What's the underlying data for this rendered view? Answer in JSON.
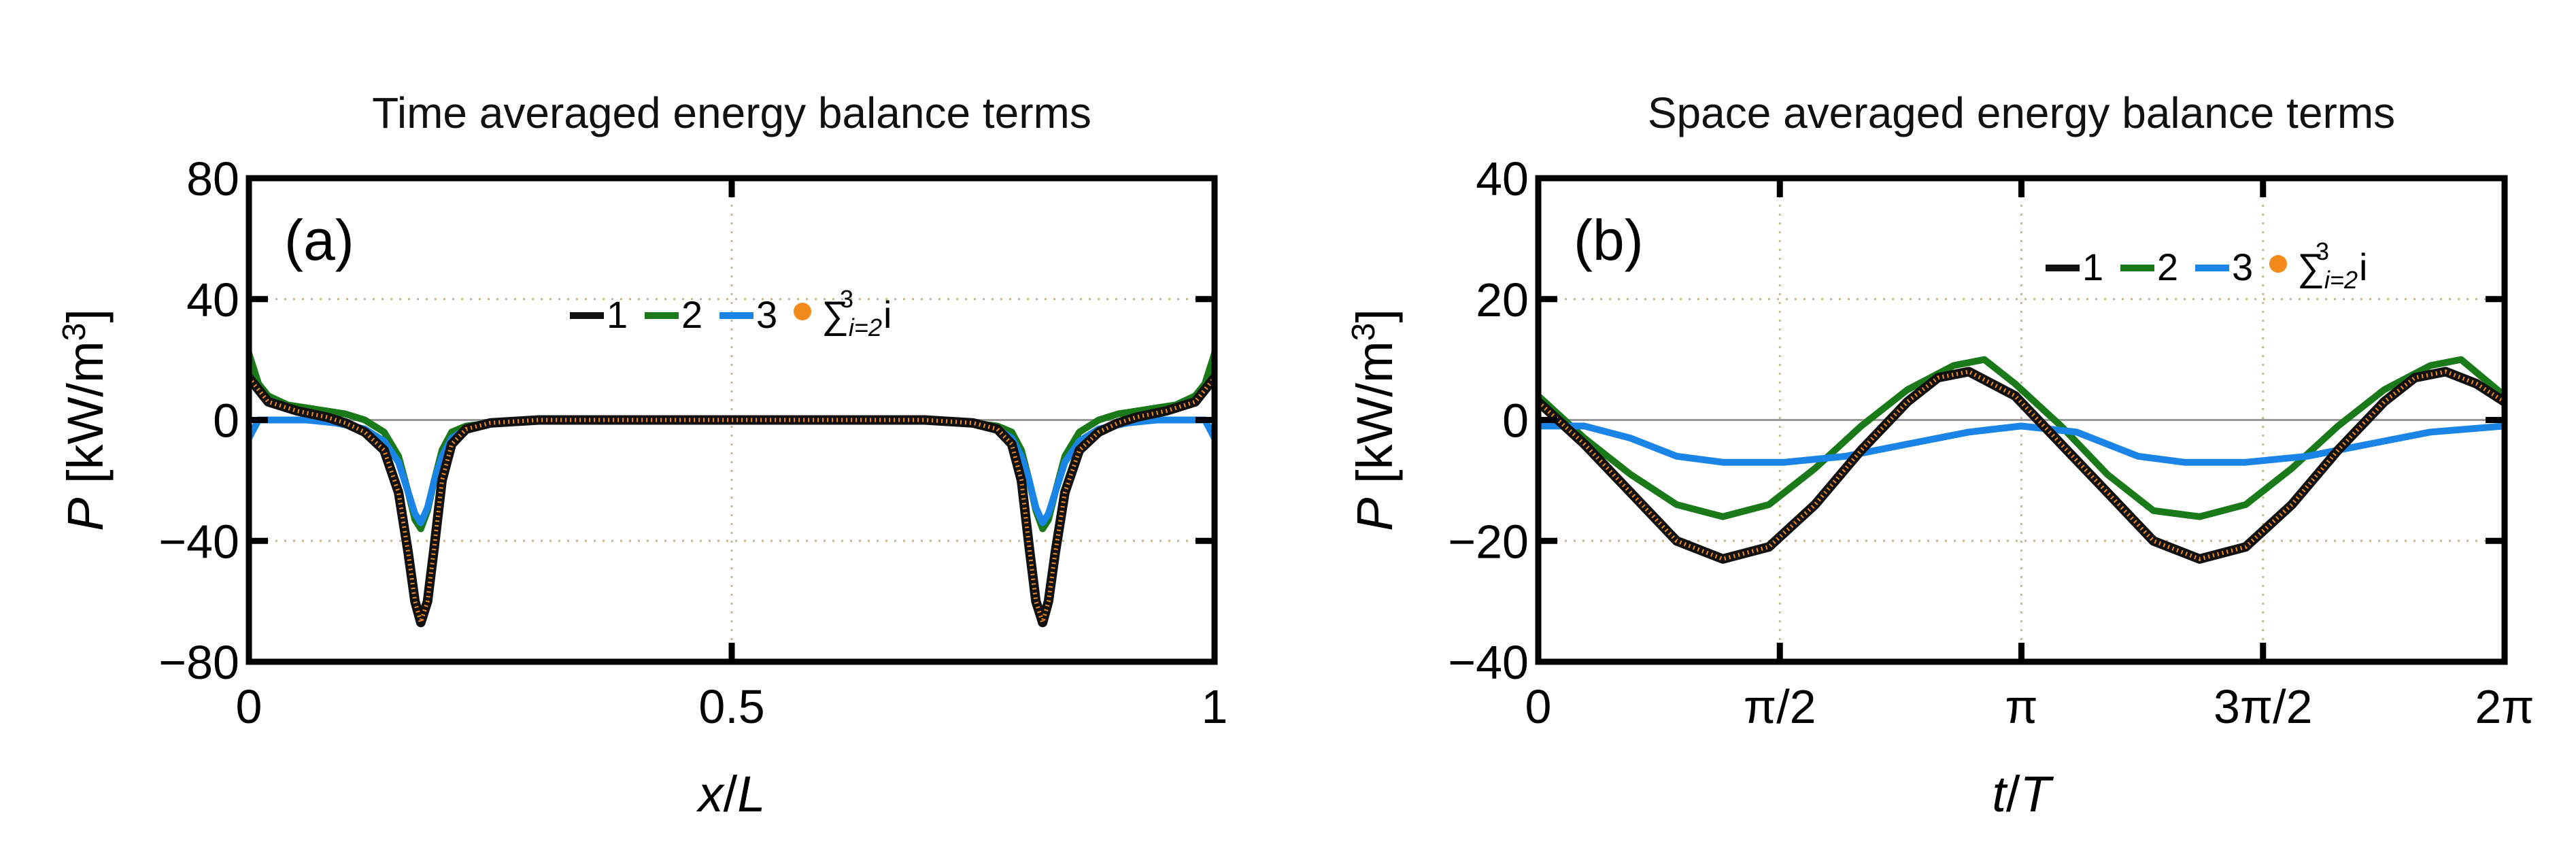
{
  "chart_data": [
    {
      "type": "line",
      "panel_label": "(a)",
      "title": "Time averaged energy balance terms",
      "xlabel_italic": "x",
      "xlabel_rest": "/",
      "xlabel_italic2": "L",
      "ylabel_italic": "P",
      "ylabel_rest": " [kW/m",
      "ylabel_sup": "3",
      "ylabel_close": "]",
      "xlim": [
        0,
        1
      ],
      "ylim": [
        -80,
        80
      ],
      "xticks": [
        0,
        0.5,
        1
      ],
      "xtick_labels": [
        "0",
        "0.5",
        "1"
      ],
      "yticks": [
        -80,
        -40,
        0,
        40,
        80
      ],
      "ytick_labels": [
        "−80",
        "−40",
        "0",
        "40",
        "80"
      ],
      "grid": "dotted",
      "legend": [
        "1",
        "2",
        "3"
      ],
      "legend_sum_symbol": "∑",
      "legend_sum_sub": "i=2",
      "legend_sum_sup": "3",
      "legend_sum_tail": "i",
      "legend_position": "upper-center",
      "series": [
        {
          "name": "1",
          "x": [
            0,
            0.02,
            0.05,
            0.08,
            0.1,
            0.12,
            0.14,
            0.155,
            0.165,
            0.172,
            0.178,
            0.185,
            0.192,
            0.2,
            0.21,
            0.225,
            0.25,
            0.3,
            0.4,
            0.5,
            0.6,
            0.7,
            0.75,
            0.775,
            0.79,
            0.8,
            0.808,
            0.815,
            0.822,
            0.828,
            0.835,
            0.845,
            0.86,
            0.88,
            0.9,
            0.92,
            0.95,
            0.98,
            1
          ],
          "y": [
            14,
            6,
            3,
            1,
            -1,
            -4,
            -10,
            -24,
            -44,
            -60,
            -67,
            -60,
            -42,
            -20,
            -8,
            -3,
            -1,
            0,
            0,
            0,
            0,
            0,
            -1,
            -3,
            -8,
            -20,
            -42,
            -60,
            -67,
            -60,
            -44,
            -24,
            -10,
            -4,
            -1,
            1,
            3,
            6,
            14
          ]
        },
        {
          "name": "2",
          "x": [
            0,
            0.01,
            0.02,
            0.04,
            0.06,
            0.08,
            0.1,
            0.12,
            0.14,
            0.155,
            0.165,
            0.172,
            0.178,
            0.185,
            0.192,
            0.2,
            0.21,
            0.225,
            0.25,
            0.3,
            0.4,
            0.5,
            0.6,
            0.7,
            0.75,
            0.775,
            0.79,
            0.8,
            0.808,
            0.815,
            0.822,
            0.828,
            0.835,
            0.845,
            0.86,
            0.88,
            0.9,
            0.92,
            0.94,
            0.96,
            0.98,
            0.99,
            1
          ],
          "y": [
            22,
            12,
            8,
            5,
            4,
            3,
            2,
            0,
            -4,
            -12,
            -24,
            -33,
            -36,
            -30,
            -20,
            -10,
            -4,
            -2,
            -1,
            0,
            0,
            0,
            0,
            0,
            -1,
            -2,
            -4,
            -10,
            -20,
            -30,
            -36,
            -33,
            -24,
            -12,
            -4,
            0,
            2,
            3,
            4,
            5,
            8,
            12,
            22
          ]
        },
        {
          "name": "3",
          "x": [
            0,
            0.01,
            0.03,
            0.06,
            0.09,
            0.12,
            0.14,
            0.155,
            0.165,
            0.172,
            0.178,
            0.185,
            0.192,
            0.2,
            0.21,
            0.225,
            0.25,
            0.3,
            0.4,
            0.5,
            0.6,
            0.7,
            0.75,
            0.775,
            0.79,
            0.8,
            0.808,
            0.815,
            0.822,
            0.828,
            0.835,
            0.845,
            0.86,
            0.88,
            0.91,
            0.94,
            0.97,
            0.99,
            1
          ],
          "y": [
            -6,
            0,
            0,
            0,
            -1,
            -3,
            -7,
            -14,
            -24,
            -31,
            -34,
            -29,
            -20,
            -12,
            -6,
            -3,
            -1,
            0,
            0,
            0,
            0,
            0,
            -1,
            -3,
            -6,
            -12,
            -20,
            -29,
            -34,
            -31,
            -24,
            -14,
            -7,
            -3,
            -1,
            0,
            0,
            0,
            -6
          ]
        },
        {
          "name": "sum",
          "marker": "dot",
          "x": [
            0,
            0.02,
            0.05,
            0.08,
            0.1,
            0.12,
            0.14,
            0.155,
            0.165,
            0.172,
            0.178,
            0.185,
            0.192,
            0.2,
            0.21,
            0.225,
            0.25,
            0.3,
            0.4,
            0.5,
            0.6,
            0.7,
            0.75,
            0.775,
            0.79,
            0.8,
            0.808,
            0.815,
            0.822,
            0.828,
            0.835,
            0.845,
            0.86,
            0.88,
            0.9,
            0.92,
            0.95,
            0.98,
            1
          ],
          "y": [
            14,
            6,
            3,
            1,
            -1,
            -4,
            -10,
            -24,
            -44,
            -60,
            -67,
            -60,
            -42,
            -20,
            -8,
            -3,
            -1,
            0,
            0,
            0,
            0,
            0,
            -1,
            -3,
            -8,
            -20,
            -42,
            -60,
            -67,
            -60,
            -44,
            -24,
            -10,
            -4,
            -1,
            1,
            3,
            6,
            14
          ]
        }
      ]
    },
    {
      "type": "line",
      "panel_label": "(b)",
      "title": "Space averaged energy balance terms",
      "xlabel_italic": "t",
      "xlabel_rest": "/",
      "xlabel_italic2": "T",
      "ylabel_italic": "P",
      "ylabel_rest": " [kW/m",
      "ylabel_sup": "3",
      "ylabel_close": "]",
      "xlim": [
        0,
        6.2832
      ],
      "ylim": [
        -40,
        40
      ],
      "xticks": [
        0,
        1.5708,
        3.1416,
        4.7124,
        6.2832
      ],
      "xtick_labels": [
        "0",
        "π/2",
        "π",
        "3π/2",
        "2π"
      ],
      "yticks": [
        -40,
        -20,
        0,
        20,
        40
      ],
      "ytick_labels": [
        "−40",
        "−20",
        "0",
        "20",
        "40"
      ],
      "grid": "dotted",
      "legend": [
        "1",
        "2",
        "3"
      ],
      "legend_sum_symbol": "∑",
      "legend_sum_sub": "i=2",
      "legend_sum_sup": "3",
      "legend_sum_tail": "i",
      "legend_position": "upper-right",
      "series": [
        {
          "name": "1",
          "x": [
            0,
            0.3,
            0.6,
            0.9,
            1.2,
            1.5,
            1.8,
            2.1,
            2.4,
            2.6,
            2.8,
            3.1,
            3.4,
            3.7,
            4.0,
            4.3,
            4.6,
            4.9,
            5.2,
            5.5,
            5.7,
            5.9,
            6.1,
            6.2832
          ],
          "y": [
            3,
            -4,
            -12,
            -20,
            -23,
            -21,
            -14,
            -5,
            3,
            7,
            8,
            4,
            -4,
            -12,
            -20,
            -23,
            -21,
            -14,
            -5,
            3,
            7,
            8,
            6,
            3
          ]
        },
        {
          "name": "2",
          "x": [
            0,
            0.3,
            0.6,
            0.9,
            1.2,
            1.5,
            1.8,
            2.1,
            2.4,
            2.7,
            2.9,
            3.1,
            3.4,
            3.7,
            4.0,
            4.3,
            4.6,
            4.9,
            5.2,
            5.5,
            5.8,
            6.0,
            6.2832
          ],
          "y": [
            4,
            -3,
            -9,
            -14,
            -16,
            -14,
            -8,
            -1,
            5,
            9,
            10,
            6,
            -1,
            -9,
            -15,
            -16,
            -14,
            -8,
            -1,
            5,
            9,
            10,
            4
          ]
        },
        {
          "name": "3",
          "x": [
            0,
            0.3,
            0.6,
            0.9,
            1.2,
            1.6,
            2.0,
            2.4,
            2.8,
            3.14,
            3.5,
            3.9,
            4.2,
            4.6,
            5.0,
            5.4,
            5.8,
            6.2832
          ],
          "y": [
            -1,
            -1,
            -3,
            -6,
            -7,
            -7,
            -6,
            -4,
            -2,
            -1,
            -2,
            -6,
            -7,
            -7,
            -6,
            -4,
            -2,
            -1
          ]
        },
        {
          "name": "sum",
          "marker": "dot",
          "x": [
            0,
            0.3,
            0.6,
            0.9,
            1.2,
            1.5,
            1.8,
            2.1,
            2.4,
            2.6,
            2.8,
            3.1,
            3.4,
            3.7,
            4.0,
            4.3,
            4.6,
            4.9,
            5.2,
            5.5,
            5.7,
            5.9,
            6.1,
            6.2832
          ],
          "y": [
            3,
            -4,
            -12,
            -20,
            -23,
            -21,
            -14,
            -5,
            3,
            7,
            8,
            4,
            -4,
            -12,
            -20,
            -23,
            -21,
            -14,
            -5,
            3,
            7,
            8,
            6,
            3
          ]
        }
      ]
    }
  ],
  "colors": {
    "series1": "#111111",
    "series2": "#1a7a1a",
    "series3": "#1a85e6",
    "sum": "#f28a1c",
    "grid": "#c8b890",
    "zero": "#9a9a9a"
  }
}
